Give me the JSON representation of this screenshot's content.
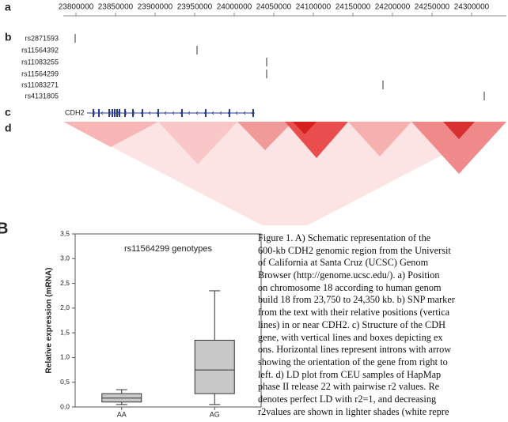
{
  "chart_data": [
    {
      "type": "genome-track",
      "panel_labels": [
        "a",
        "b",
        "c",
        "d"
      ],
      "xlim": [
        23784000,
        24344000
      ],
      "xticks": [
        23800000,
        23850000,
        23900000,
        23950000,
        24000000,
        24050000,
        24100000,
        24150000,
        24200000,
        24250000,
        24300000
      ],
      "snps": [
        {
          "name": "rs2871593",
          "position": 23799000
        },
        {
          "name": "rs11564392",
          "position": 23953000
        },
        {
          "name": "rs11083255",
          "position": 24041000
        },
        {
          "name": "rs11564299",
          "position": 24041000
        },
        {
          "name": "rs11083271",
          "position": 24188000
        },
        {
          "name": "rs4131805",
          "position": 24316000
        }
      ],
      "gene": {
        "name": "CDH2",
        "start": 23814000,
        "end": 24026000,
        "exons": [
          23822000,
          23829000,
          23842000,
          23846000,
          23849000,
          23852000,
          23855000,
          23862000,
          23872000,
          23884000,
          23904000,
          23934000,
          23964000,
          23994000,
          24024000
        ]
      }
    },
    {
      "type": "box",
      "panel_label": "B",
      "title": "rs11564299 genotypes",
      "y_label": "Relative expression (mRNA)",
      "categories": [
        "AA",
        "AG"
      ],
      "boxes": [
        {
          "min": 0.05,
          "q1": 0.1,
          "median": 0.18,
          "q3": 0.27,
          "max": 0.35
        },
        {
          "min": 0.05,
          "q1": 0.27,
          "median": 0.75,
          "q3": 1.35,
          "max": 2.35
        }
      ],
      "color": "#c8c8c8",
      "ylim": [
        0,
        3.5
      ],
      "yticks": [
        {
          "value": 0,
          "label": "0,0"
        },
        {
          "value": 0.5,
          "label": "0,5"
        },
        {
          "value": 1,
          "label": "1,0"
        },
        {
          "value": 1.5,
          "label": "1,5"
        },
        {
          "value": 2,
          "label": "2,0"
        },
        {
          "value": 2.5,
          "label": "2,5"
        },
        {
          "value": 3,
          "label": "3,0"
        },
        {
          "value": 3.5,
          "label": "3,5"
        }
      ]
    }
  ],
  "caption": {
    "lines": [
      "Figure 1. A) Schematic representation of the",
      "600-kb CDH2 genomic region from the Universit",
      "of California at Santa Cruz (UCSC) Genom",
      "Browser (http://genome.ucsc.edu/). a) Position",
      "on chromosome 18 according to human genom",
      "build 18 from 23,750 to 24,350 kb. b) SNP marker",
      "from the text with their relative positions (vertica",
      "lines) in or near CDH2. c) Structure of the CDH",
      "gene, with vertical lines and boxes depicting ex",
      "ons. Horizontal lines represent introns with arrow",
      "showing the orientation of the gene from right to",
      "left. d) LD plot from CEU samples of HapMap",
      "phase II release 22 with pairwise r2 values. Re",
      "denotes perfect LD with r2=1, and decreasing",
      "r2values are shown in lighter shades (white repre"
    ]
  }
}
